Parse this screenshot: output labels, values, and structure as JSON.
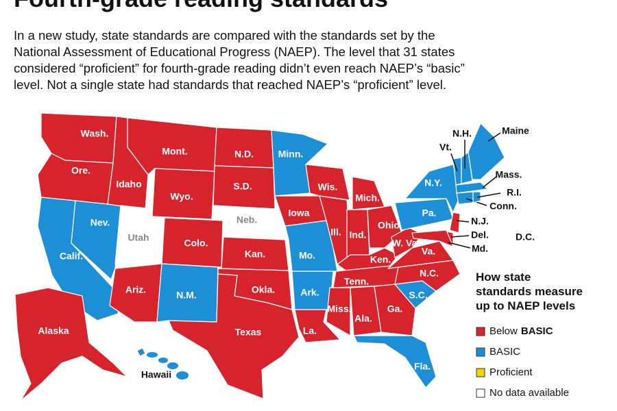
{
  "title": "Fourth-grade reading standards",
  "intro": [
    "In a new study, state standards are compared with the standards set by the",
    "National Assessment of Educational Progress (NAEP). The level that 31 states",
    "considered “proficient” for fourth-grade reading didn’t even reach NAEP’s “basic”",
    "level. Not a single state had standards that reached NAEP’s “proficient” level."
  ],
  "legend": {
    "title": [
      "How state",
      "standards measure",
      "up to NAEP levels"
    ],
    "items": [
      {
        "label": [
          "Below",
          "BASIC"
        ],
        "color": "#d7232b"
      },
      {
        "label": [
          "BASIC"
        ],
        "color": "#1d8fd6"
      },
      {
        "label": [
          "Proficient"
        ],
        "color": "#f5d400"
      },
      {
        "label": [
          "No data available"
        ],
        "color": "#ffffff"
      }
    ]
  },
  "states": [
    {
      "label": "Wash.",
      "color": "#d7232b"
    },
    {
      "label": "Ore.",
      "color": "#d7232b"
    },
    {
      "label": "Calif.",
      "color": "#1d8fd6"
    },
    {
      "label": "Nev.",
      "color": "#1d8fd6"
    },
    {
      "label": "Idaho",
      "color": "#d7232b"
    },
    {
      "label": "Mont.",
      "color": "#d7232b"
    },
    {
      "label": "Wyo.",
      "color": "#d7232b"
    },
    {
      "label": "Utah",
      "color": "#ffffff"
    },
    {
      "label": "Colo.",
      "color": "#d7232b"
    },
    {
      "label": "Ariz.",
      "color": "#d7232b"
    },
    {
      "label": "N.M.",
      "color": "#1d8fd6"
    },
    {
      "label": "N.D.",
      "color": "#d7232b"
    },
    {
      "label": "S.D.",
      "color": "#d7232b"
    },
    {
      "label": "Neb.",
      "color": "#ffffff"
    },
    {
      "label": "Kan.",
      "color": "#d7232b"
    },
    {
      "label": "Okla.",
      "color": "#d7232b"
    },
    {
      "label": "Texas",
      "color": "#d7232b"
    },
    {
      "label": "Minn.",
      "color": "#1d8fd6"
    },
    {
      "label": "Iowa",
      "color": "#d7232b"
    },
    {
      "label": "Mo.",
      "color": "#1d8fd6"
    },
    {
      "label": "Ark.",
      "color": "#1d8fd6"
    },
    {
      "label": "La.",
      "color": "#d7232b"
    },
    {
      "label": "Wis.",
      "color": "#d7232b"
    },
    {
      "label": "Ill.",
      "color": "#d7232b"
    },
    {
      "label": "Mich.",
      "color": "#d7232b"
    },
    {
      "label": "Ind.",
      "color": "#d7232b"
    },
    {
      "label": "Ohio",
      "color": "#d7232b"
    },
    {
      "label": "Ken.",
      "color": "#d7232b"
    },
    {
      "label": "Tenn.",
      "color": "#d7232b"
    },
    {
      "label": "Miss.",
      "color": "#d7232b"
    },
    {
      "label": "Ala.",
      "color": "#d7232b"
    },
    {
      "label": "Ga.",
      "color": "#d7232b"
    },
    {
      "label": "Fla.",
      "color": "#1d8fd6"
    },
    {
      "label": "S.C.",
      "color": "#1d8fd6"
    },
    {
      "label": "N.C.",
      "color": "#d7232b"
    },
    {
      "label": "Va.",
      "color": "#d7232b"
    },
    {
      "label": "W. Va.",
      "color": "#d7232b"
    },
    {
      "label": "Pa.",
      "color": "#1d8fd6"
    },
    {
      "label": "N.Y.",
      "color": "#1d8fd6"
    },
    {
      "label": "N.J.",
      "color": "#d7232b"
    },
    {
      "label": "Del.",
      "color": "#d7232b"
    },
    {
      "label": "Md.",
      "color": "#d7232b"
    },
    {
      "label": "Vt.",
      "color": "#1d8fd6"
    },
    {
      "label": "N.H.",
      "color": "#1d8fd6"
    },
    {
      "label": "Maine",
      "color": "#1d8fd6"
    },
    {
      "label": "Mass.",
      "color": "#1d8fd6"
    },
    {
      "label": "Conn.",
      "color": "#1d8fd6"
    },
    {
      "label": "R.I.",
      "color": "#1d8fd6"
    },
    {
      "label": "Alaska",
      "color": "#d7232b"
    },
    {
      "label": "Hawaii",
      "color": "#1d8fd6"
    },
    {
      "label": "D.C.",
      "color": "#ffffff"
    }
  ]
}
